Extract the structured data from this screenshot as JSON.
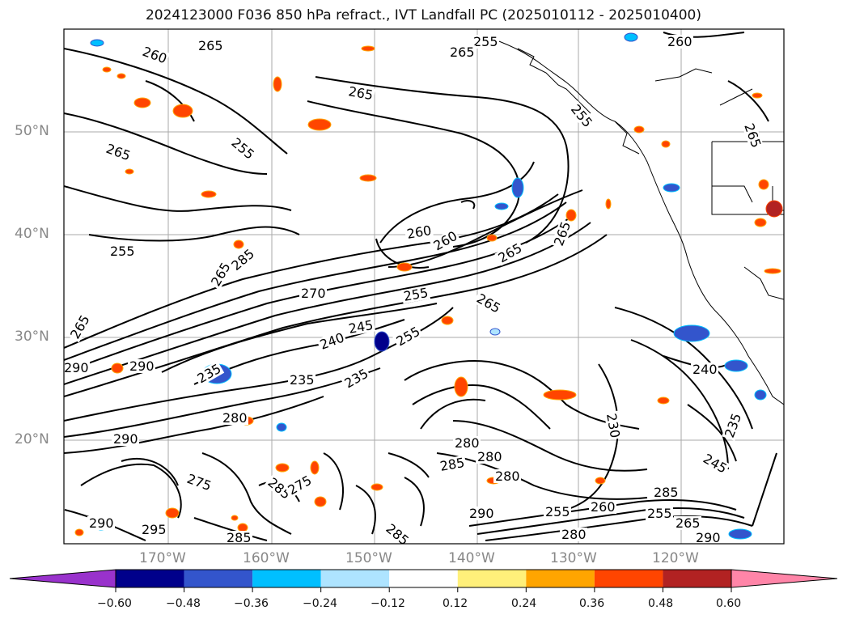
{
  "title": "2024123000 F036 850 hPa refract., IVT Landfall PC (2025010112 - 2025010400)",
  "lat_labels": [
    "50°N",
    "40°N",
    "30°N",
    "20°N"
  ],
  "lon_labels": [
    "170°W",
    "160°W",
    "150°W",
    "140°W",
    "130°W",
    "120°W"
  ],
  "colorbar": {
    "ticks": [
      "−0.60",
      "−0.48",
      "−0.36",
      "−0.24",
      "−0.12",
      "0.12",
      "0.24",
      "0.36",
      "0.48",
      "0.60"
    ],
    "colors": [
      "#9932cc",
      "#00008b",
      "#3355cc",
      "#00bfff",
      "#aee4ff",
      "#ffffff",
      "#fff07a",
      "#ffa500",
      "#ff4500",
      "#b22222",
      "#ff85a8"
    ]
  },
  "contour_labels": [
    "260",
    "265",
    "255",
    "260",
    "265",
    "265",
    "255",
    "265",
    "255",
    "265",
    "255",
    "260",
    "260",
    "265",
    "265",
    "265",
    "285",
    "270",
    "255",
    "265",
    "290",
    "290",
    "265",
    "240",
    "245",
    "255",
    "235",
    "235",
    "280",
    "235",
    "280",
    "290",
    "280",
    "285",
    "280",
    "290",
    "255",
    "260",
    "255",
    "265",
    "290",
    "285",
    "280",
    "285",
    "295",
    "275",
    "285",
    "275",
    "230",
    "245",
    "235",
    "240",
    "290",
    "285"
  ]
}
